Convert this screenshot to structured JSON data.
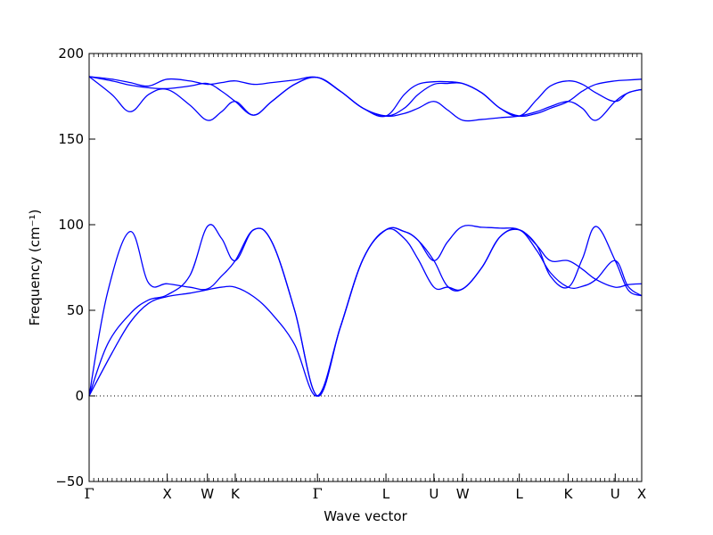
{
  "chart_data": {
    "type": "line",
    "title": "",
    "xlabel": "Wave vector",
    "ylabel": "Frequency (cm⁻¹)",
    "ylim": [
      -50,
      200
    ],
    "yticks": [
      -50,
      0,
      50,
      100,
      150,
      200
    ],
    "xlim": [
      0,
      12.1
    ],
    "zero_line": true,
    "x_labels": [
      {
        "label": "Γ",
        "x": 0,
        "symbol": true
      },
      {
        "label": "X",
        "x": 1.71,
        "symbol": false
      },
      {
        "label": "W",
        "x": 2.59,
        "symbol": false
      },
      {
        "label": "K",
        "x": 3.2,
        "symbol": false
      },
      {
        "label": "Γ",
        "x": 5.0,
        "symbol": true
      },
      {
        "label": "L",
        "x": 6.5,
        "symbol": false
      },
      {
        "label": "U",
        "x": 7.55,
        "symbol": false
      },
      {
        "label": "W",
        "x": 8.18,
        "symbol": false
      },
      {
        "label": "L",
        "x": 9.42,
        "symbol": false
      },
      {
        "label": "K",
        "x": 10.49,
        "symbol": false
      },
      {
        "label": "U",
        "x": 11.52,
        "symbol": false
      },
      {
        "label": "X",
        "x": 12.1,
        "symbol": false
      }
    ],
    "line_color": "#0000ff",
    "series": [
      {
        "x": [
          0,
          0.5,
          0.9,
          1.3,
          1.71,
          2.2,
          2.59,
          2.9,
          3.2,
          3.6,
          4.0,
          4.5,
          5.0,
          5.5,
          6.0,
          6.5,
          6.9,
          7.2,
          7.55,
          7.85,
          8.18,
          8.6,
          9.0,
          9.42,
          9.8,
          10.1,
          10.49,
          10.8,
          11.1,
          11.52,
          11.8,
          12.1
        ],
        "values": [
          0,
          25,
          43,
          54,
          58,
          60,
          62,
          63.5,
          63.5,
          58,
          48,
          30,
          0,
          40,
          80,
          97,
          92,
          80,
          63.5,
          63.5,
          62.5,
          75,
          93,
          97,
          85,
          72,
          63.5,
          64,
          68,
          79,
          64,
          58.5
        ]
      },
      {
        "x": [
          0,
          0.4,
          0.9,
          1.3,
          1.71,
          2.2,
          2.59,
          2.9,
          3.2,
          3.6,
          4.0,
          4.5,
          5.0,
          5.5,
          6.0,
          6.5,
          6.9,
          7.2,
          7.55,
          7.85,
          8.18,
          8.6,
          9.0,
          9.42,
          9.8,
          10.1,
          10.49,
          10.8,
          11.1,
          11.52,
          11.8,
          12.1
        ],
        "values": [
          0,
          60,
          96,
          66,
          65.5,
          63.5,
          62.5,
          70,
          79,
          97,
          90,
          50,
          0,
          40,
          80,
          97,
          96,
          91,
          79,
          64,
          62.5,
          75,
          93,
          97,
          88,
          79,
          79,
          74,
          68,
          63.5,
          65,
          65.5
        ]
      },
      {
        "x": [
          0,
          0.4,
          0.9,
          1.3,
          1.71,
          2.2,
          2.59,
          2.9,
          3.2,
          3.6,
          4.0,
          4.5,
          5.0,
          5.5,
          6.0,
          6.5,
          6.9,
          7.2,
          7.55,
          7.85,
          8.18,
          8.6,
          9.0,
          9.42,
          9.8,
          10.1,
          10.49,
          10.8,
          11.1,
          11.52,
          11.8,
          12.1
        ],
        "values": [
          0,
          30,
          48,
          56,
          59,
          70,
          99,
          92,
          79,
          97,
          90,
          50,
          0,
          40,
          80,
          97,
          96,
          91,
          79,
          90,
          99,
          98.5,
          98,
          97,
          88,
          70,
          63.5,
          80,
          99,
          79,
          62,
          58.5
        ]
      },
      {
        "x": [
          0,
          0.5,
          0.9,
          1.3,
          1.71,
          2.2,
          2.59,
          2.9,
          3.2,
          3.6,
          4.0,
          4.5,
          5.0,
          5.5,
          6.0,
          6.5,
          6.9,
          7.2,
          7.55,
          7.85,
          8.18,
          8.6,
          9.0,
          9.42,
          9.8,
          10.1,
          10.49,
          10.8,
          11.1,
          11.52,
          11.8,
          12.1
        ],
        "values": [
          186.5,
          176,
          166,
          176,
          179,
          170,
          161,
          166,
          172,
          164,
          172,
          182,
          186,
          178,
          168,
          163.5,
          165,
          168,
          172,
          167,
          161,
          161.5,
          162.5,
          163.5,
          166,
          169,
          172,
          168,
          161,
          172,
          177,
          179
        ]
      },
      {
        "x": [
          0,
          0.5,
          0.9,
          1.3,
          1.71,
          2.2,
          2.59,
          2.9,
          3.2,
          3.6,
          4.0,
          4.5,
          5.0,
          5.5,
          6.0,
          6.5,
          6.9,
          7.2,
          7.55,
          7.85,
          8.18,
          8.6,
          9.0,
          9.42,
          9.8,
          10.1,
          10.49,
          10.8,
          11.1,
          11.52,
          11.8,
          12.1
        ],
        "values": [
          186.5,
          184,
          181.5,
          180,
          179.5,
          181,
          182.5,
          178,
          172,
          164,
          172,
          182,
          186,
          178,
          168,
          163.5,
          168,
          176,
          182,
          182.5,
          182.5,
          177,
          168,
          163.5,
          165,
          168,
          172,
          178,
          182,
          184,
          184.5,
          185
        ]
      },
      {
        "x": [
          0,
          0.5,
          0.9,
          1.3,
          1.71,
          2.2,
          2.59,
          2.9,
          3.2,
          3.6,
          4.0,
          4.5,
          5.0,
          5.5,
          6.0,
          6.5,
          6.9,
          7.2,
          7.55,
          7.85,
          8.18,
          8.6,
          9.0,
          9.42,
          9.8,
          10.1,
          10.49,
          10.8,
          11.1,
          11.52,
          11.8,
          12.1
        ],
        "values": [
          186.5,
          185,
          183,
          181,
          185,
          184,
          182,
          183,
          184,
          182,
          183,
          184.5,
          186,
          178,
          168,
          163.5,
          176,
          182,
          183.5,
          183.5,
          182.5,
          177,
          168,
          163.5,
          173,
          181,
          184,
          182,
          177,
          172,
          177,
          179
        ]
      }
    ]
  }
}
